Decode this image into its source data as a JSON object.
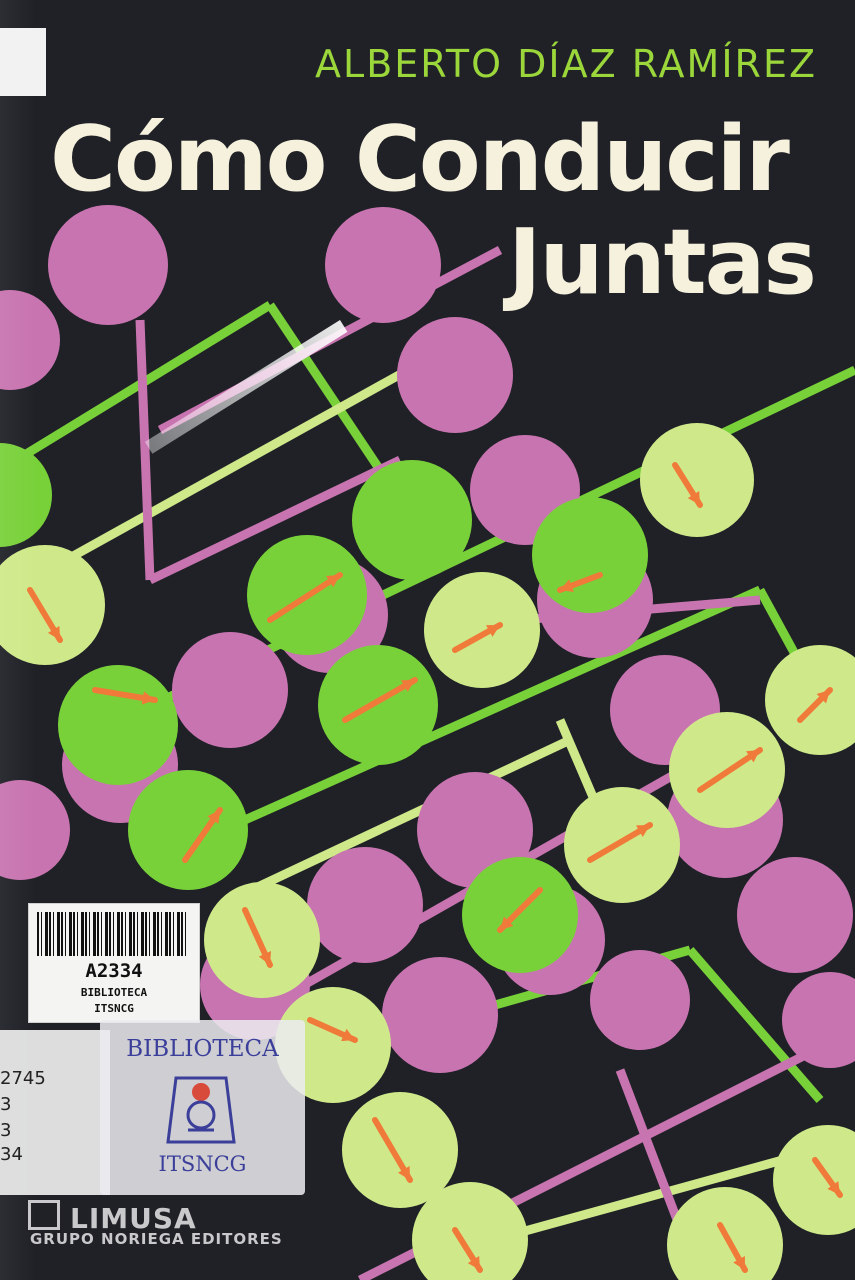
{
  "cover": {
    "author": "ALBERTO DÍAZ RAMÍREZ",
    "title_line1": "Cómo Conducir",
    "title_line2": "Juntas",
    "publisher_logo": "LIMUSA",
    "publisher": "GRUPO NORIEGA EDITORES"
  },
  "barcode_label": {
    "code": "A2334",
    "line1": "BIBLIOTECA",
    "line2": "ITSNCG"
  },
  "library_sticker": {
    "top": "BIBLIOTECA",
    "bottom": "ITSNCG"
  },
  "call_number": {
    "line1": "2745",
    "line2": "3",
    "line3": "3",
    "line4": "34"
  },
  "colors": {
    "background": "#1f2127",
    "author": "#9bd63a",
    "title": "#f6f1dc",
    "pink": "#c874b0",
    "green": "#79d13a",
    "lime": "#cfe98a",
    "arrow": "#f07a3a"
  },
  "icons": [
    "arrow-icon",
    "barcode-icon",
    "seal-icon",
    "publisher-logo-icon"
  ]
}
